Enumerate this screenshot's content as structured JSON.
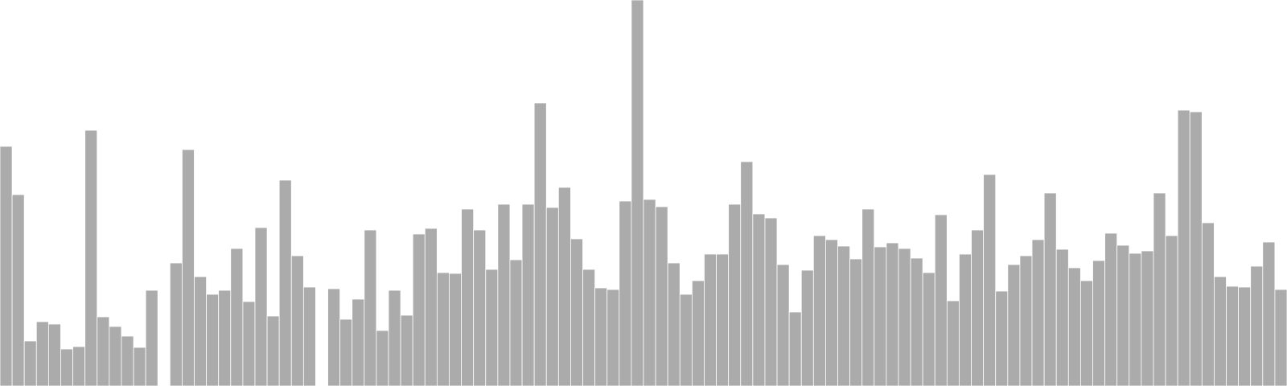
{
  "chart_data": {
    "type": "bar",
    "title": "",
    "xlabel": "",
    "ylabel": "",
    "grid": false,
    "legend": "none",
    "bar_color": "#ababab",
    "bar_edge_color": "#ffffff",
    "ylim": [
      0,
      480
    ],
    "values": [
      298,
      238,
      56,
      80,
      77,
      46,
      49,
      318,
      86,
      74,
      62,
      48,
      119,
      0,
      153,
      294,
      136,
      114,
      119,
      171,
      105,
      197,
      87,
      256,
      162,
      123,
      0,
      121,
      83,
      108,
      194,
      69,
      119,
      88,
      189,
      196,
      141,
      140,
      220,
      194,
      145,
      226,
      157,
      226,
      352,
      222,
      247,
      183,
      145,
      122,
      120,
      230,
      480,
      232,
      223,
      153,
      114,
      131,
      164,
      164,
      226,
      279,
      214,
      209,
      151,
      92,
      144,
      187,
      182,
      174,
      158,
      220,
      173,
      178,
      171,
      159,
      141,
      213,
      106,
      164,
      194,
      263,
      118,
      151,
      162,
      182,
      240,
      170,
      147,
      131,
      156,
      190,
      175,
      165,
      168,
      240,
      187,
      343,
      341,
      203,
      136,
      124,
      123,
      149,
      179,
      120
    ]
  }
}
